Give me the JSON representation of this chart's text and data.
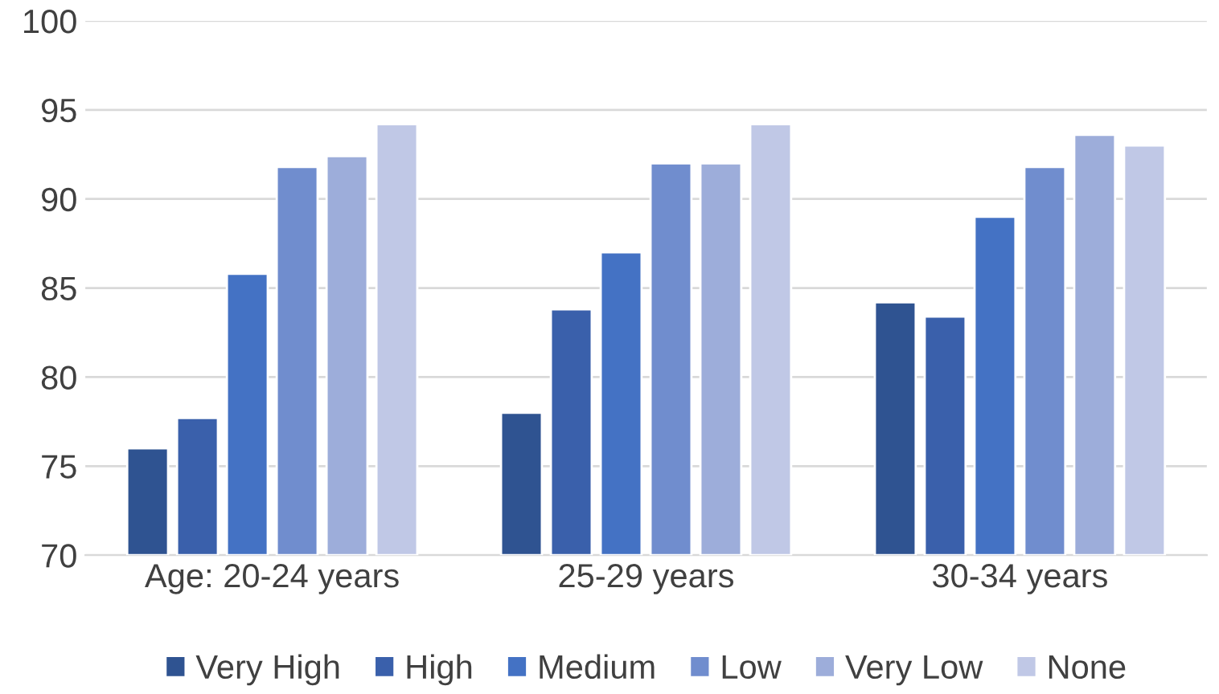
{
  "chart_data": {
    "type": "bar",
    "categories": [
      "Age: 20-24 years",
      "25-29 years",
      "30-34 years"
    ],
    "series": [
      {
        "name": "Very High",
        "color": "#2f5391",
        "values": [
          76.0,
          78.0,
          84.2
        ]
      },
      {
        "name": "High",
        "color": "#3a60ab",
        "values": [
          77.7,
          83.8,
          83.4
        ]
      },
      {
        "name": "Medium",
        "color": "#4472c4",
        "values": [
          85.8,
          87.0,
          89.0
        ]
      },
      {
        "name": "Low",
        "color": "#708dce",
        "values": [
          91.8,
          92.0,
          91.8
        ]
      },
      {
        "name": "Very Low",
        "color": "#9dadda",
        "values": [
          92.4,
          92.0,
          93.6
        ]
      },
      {
        "name": "None",
        "color": "#c0c8e6",
        "values": [
          94.2,
          94.2,
          93.0
        ]
      }
    ],
    "ylim": [
      70,
      100
    ],
    "yticks": [
      70,
      75,
      80,
      85,
      90,
      95,
      100
    ],
    "grid": "y",
    "legend": "bottom"
  }
}
